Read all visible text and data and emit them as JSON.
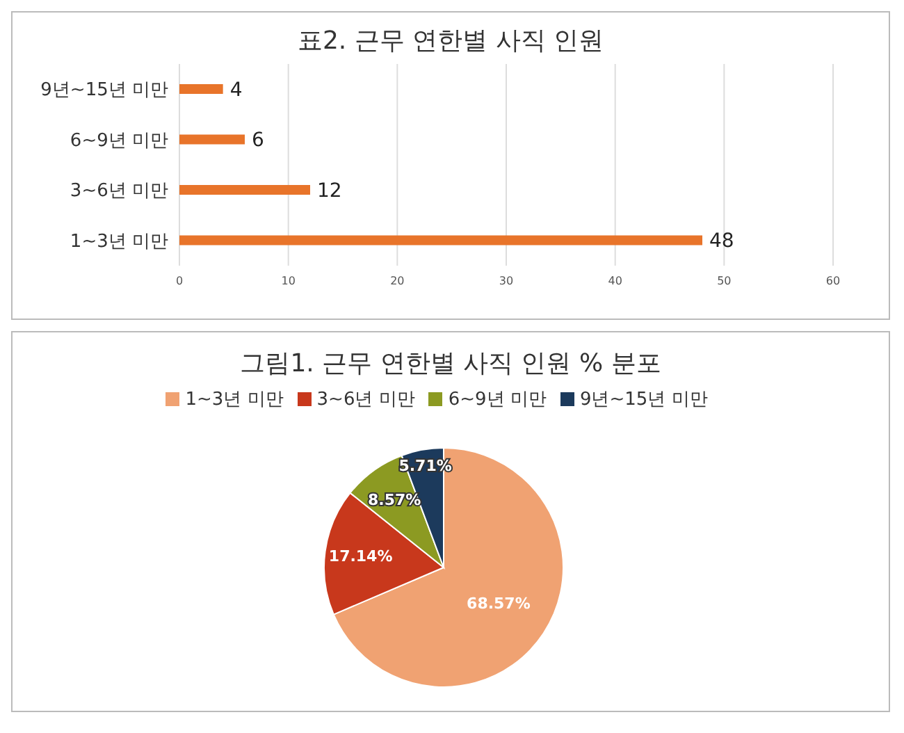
{
  "chart_data": [
    {
      "type": "bar",
      "orientation": "horizontal",
      "title": "표2. 근무 연한별 사직 인원",
      "categories": [
        "9년~15년 미만",
        "6~9년 미만",
        "3~6년 미만",
        "1~3년 미만"
      ],
      "values": [
        4,
        6,
        12,
        48
      ],
      "color": "#e8742a",
      "xlim": [
        0,
        60
      ],
      "xticks": [
        0,
        10,
        20,
        30,
        40,
        50,
        60
      ],
      "grid": "x",
      "data_labels": true
    },
    {
      "type": "pie",
      "title": "그림1. 근무 연한별 사직 인원 % 분포",
      "categories": [
        "1~3년 미만",
        "3~6년 미만",
        "6~9년 미만",
        "9년~15년 미만"
      ],
      "values": [
        68.57,
        17.14,
        8.57,
        5.71
      ],
      "colors": [
        "#f0a272",
        "#c8381c",
        "#8c9a22",
        "#1c3a5c"
      ],
      "value_labels": [
        "68.57%",
        "17.14%",
        "8.57%",
        "5.71%"
      ],
      "legend": "top"
    }
  ]
}
